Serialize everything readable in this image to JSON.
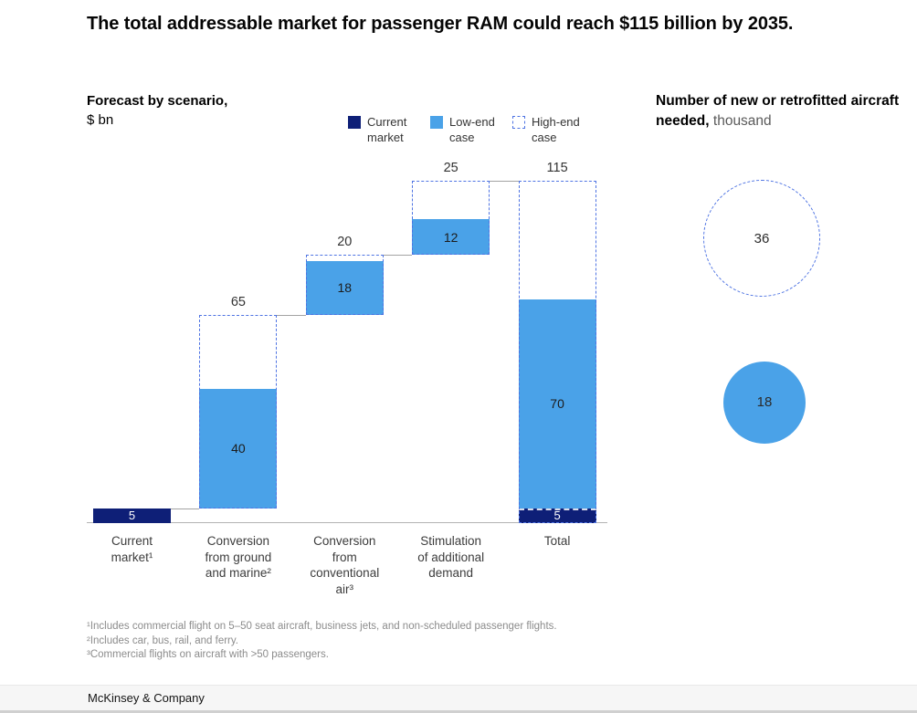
{
  "title": "The total addressable market for passenger RAM could reach $115 billion by 2035.",
  "footer": "McKinsey & Company",
  "footnotes": [
    "¹Includes commercial flight on 5–50 seat aircraft, business jets, and non-scheduled passenger flights.",
    "²Includes car, bus, rail, and ferry.",
    "³Commercial flights on aircraft with >50 passengers."
  ],
  "colors": {
    "navy": "#0e1f77",
    "light_blue": "#4aa2e8",
    "dashed_blue": "#4f74e3",
    "connector_gray": "#a3a3a3",
    "footnote_gray": "#8c8c8c"
  },
  "chart_data": [
    {
      "type": "bar",
      "variant": "waterfall",
      "title": "Forecast by scenario,",
      "unit": "$ bn",
      "ylim": [
        0,
        115
      ],
      "grid": false,
      "legend_position": "top",
      "legend": [
        {
          "label": "Current market",
          "swatch": "navy"
        },
        {
          "label": "Low-end case",
          "swatch": "blue"
        },
        {
          "label": "High-end case",
          "swatch": "dashed"
        }
      ],
      "categories": [
        "Current market¹",
        "Conversion from ground and marine²",
        "Conversion from conventional air³",
        "Stimulation of additional demand",
        "Total"
      ],
      "bars": [
        {
          "name": "current-market",
          "category_lines": [
            "Current",
            "market¹"
          ],
          "top_label": "",
          "rects": [
            {
              "style": "navy",
              "from": 0,
              "to": 5,
              "label": "5",
              "label_style": "light"
            }
          ]
        },
        {
          "name": "conversion-from-ground-and-marine",
          "category_lines": [
            "Conversion",
            "from ground",
            "and marine²"
          ],
          "top_label": "65",
          "rects": [
            {
              "style": "blue",
              "from": 5,
              "to": 45,
              "label": "40",
              "label_style": "dark"
            },
            {
              "style": "dashed",
              "from": 5,
              "to": 70
            }
          ]
        },
        {
          "name": "conversion-from-conventional-air",
          "category_lines": [
            "Conversion",
            "from",
            "conventional",
            "air³"
          ],
          "top_label": "20",
          "rects": [
            {
              "style": "blue",
              "from": 70,
              "to": 88,
              "label": "18",
              "label_style": "dark"
            },
            {
              "style": "dashed",
              "from": 70,
              "to": 90
            }
          ]
        },
        {
          "name": "stimulation-of-additional-demand",
          "category_lines": [
            "Stimulation",
            "of additional",
            "demand"
          ],
          "top_label": "25",
          "rects": [
            {
              "style": "blue",
              "from": 90,
              "to": 102,
              "label": "12",
              "label_style": "dark"
            },
            {
              "style": "dashed",
              "from": 90,
              "to": 115
            }
          ]
        },
        {
          "name": "total",
          "category_lines": [
            "Total"
          ],
          "top_label": "115",
          "rects": [
            {
              "style": "blue",
              "from": 5,
              "to": 75,
              "label": "70",
              "label_style": "dark"
            },
            {
              "style": "navy",
              "from": 0,
              "to": 5,
              "label": "5",
              "label_style": "light",
              "divider_dashed": true
            },
            {
              "style": "dashed",
              "from": 0,
              "to": 115
            }
          ]
        }
      ],
      "connectors": [
        {
          "at": 5,
          "from_bar": 0,
          "to_bar": 1
        },
        {
          "at": 70,
          "from_bar": 1,
          "to_bar": 2
        },
        {
          "at": 90,
          "from_bar": 2,
          "to_bar": 3
        },
        {
          "at": 115,
          "from_bar": 3,
          "to_bar": 4
        }
      ]
    },
    {
      "type": "bubble",
      "title": "Number of new or retrofitted aircraft needed,",
      "unit": "thousand",
      "items": [
        {
          "case": "high-end",
          "value": 36,
          "label": "36",
          "style": "dashed"
        },
        {
          "case": "low-end",
          "value": 18,
          "label": "18",
          "style": "solid"
        }
      ]
    }
  ]
}
